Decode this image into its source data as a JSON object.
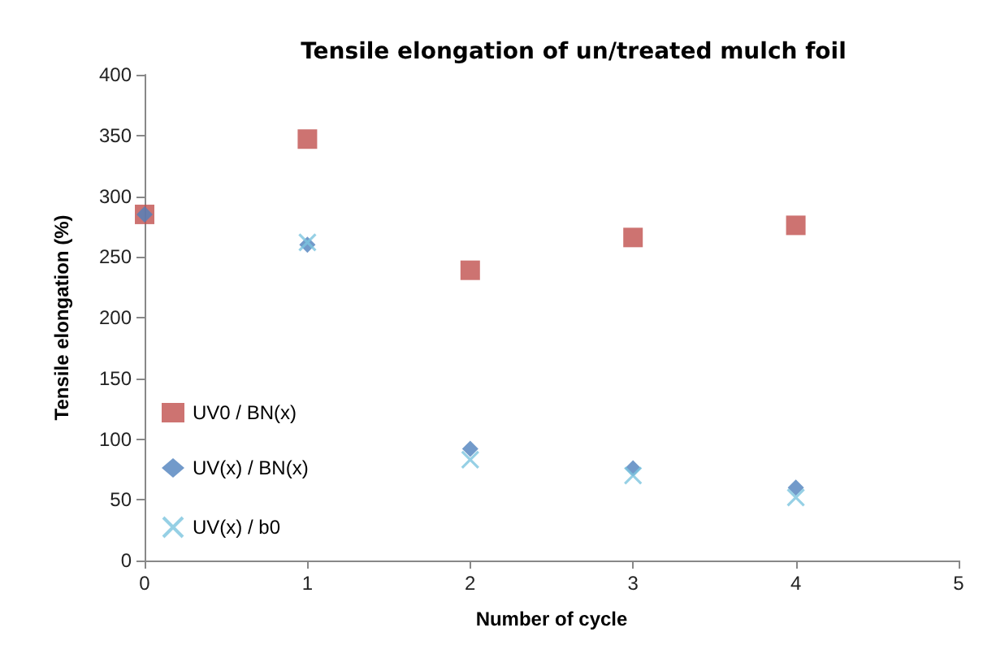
{
  "chart_data": {
    "type": "scatter",
    "title": "Tensile elongation of un/treated mulch foil",
    "xlabel": "Number of cycle",
    "ylabel": "Tensile elongation (%)",
    "x": [
      0,
      1,
      2,
      3,
      4
    ],
    "series": [
      {
        "name": "UV0 / BN(x)",
        "color": "#c0504d",
        "marker": "square",
        "values": [
          285,
          347,
          239,
          266,
          276
        ]
      },
      {
        "name": "UV(x) / BN(x)",
        "color": "#4f81bd",
        "marker": "diamond",
        "values": [
          285,
          260,
          92,
          76,
          60
        ]
      },
      {
        "name": "UV(x) / b0",
        "color": "#7cc4de",
        "marker": "cross",
        "values": [
          null,
          262,
          83,
          70,
          52
        ]
      }
    ],
    "xlim": [
      0,
      5
    ],
    "xticks": [
      0,
      1,
      2,
      3,
      4,
      5
    ],
    "ylim": [
      0,
      400
    ],
    "yticks": [
      0,
      50,
      100,
      150,
      200,
      250,
      300,
      350,
      400
    ],
    "grid": false,
    "legend": "left"
  }
}
